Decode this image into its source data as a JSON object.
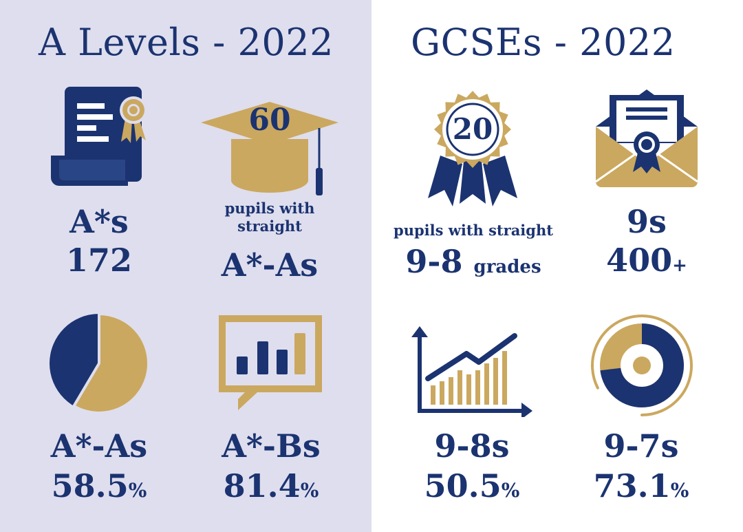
{
  "colors": {
    "navy": "#1b3370",
    "gold": "#cba85f",
    "left_bg": "#dfdeee",
    "right_bg": "#ffffff"
  },
  "a_levels": {
    "title": "A Levels - 2022",
    "stats": {
      "astars": {
        "icon": "certificate-scroll-icon",
        "label": "A*s",
        "value": "172"
      },
      "straight": {
        "icon": "graduation-cap-icon",
        "icon_number": "60",
        "caption": "pupils with straight",
        "label": "A*-As"
      },
      "astar_a": {
        "icon": "pie-chart-icon",
        "label": "A*-As",
        "value": "58.5",
        "unit": "%",
        "fraction": 0.585
      },
      "astar_b": {
        "icon": "bar-chart-speech-bubble-icon",
        "label": "A*-Bs",
        "value": "81.4",
        "unit": "%"
      }
    }
  },
  "gcses": {
    "title": "GCSEs - 2022",
    "stats": {
      "straight": {
        "icon": "award-rosette-icon",
        "icon_number": "20",
        "caption": "pupils with straight",
        "label": "9-8",
        "suffix": "grades"
      },
      "nines": {
        "icon": "envelope-certificate-icon",
        "label": "9s",
        "value": "400",
        "suffix": "+"
      },
      "nine_eight": {
        "icon": "growth-chart-icon",
        "label": "9-8s",
        "value": "50.5",
        "unit": "%"
      },
      "nine_seven": {
        "icon": "donut-chart-icon",
        "label": "9-7s",
        "value": "73.1",
        "unit": "%",
        "fraction": 0.731
      }
    }
  }
}
